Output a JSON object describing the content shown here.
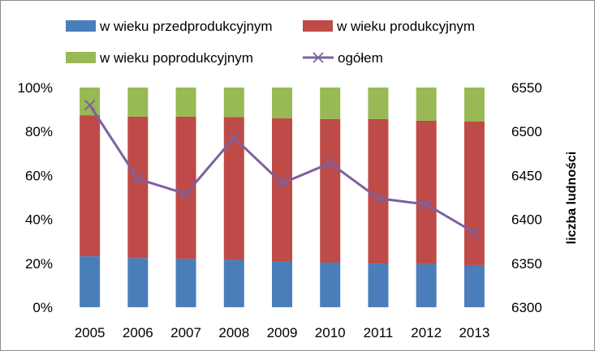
{
  "chart_data": {
    "type": "bar",
    "stacked": "percent",
    "categories": [
      "2005",
      "2006",
      "2007",
      "2008",
      "2009",
      "2010",
      "2011",
      "2012",
      "2013"
    ],
    "series": [
      {
        "name": "w wieku przedprodukcyjnym",
        "color": "#4a7ebb",
        "values": [
          23.2,
          22.4,
          22.0,
          21.6,
          20.7,
          20.3,
          19.9,
          19.6,
          19.2
        ]
      },
      {
        "name": "w wieku produkcyjnym",
        "color": "#be4b48",
        "values": [
          64.2,
          64.4,
          64.8,
          65.0,
          65.3,
          65.4,
          65.8,
          65.3,
          65.3
        ]
      },
      {
        "name": "w wieku poprodukcyjnym",
        "color": "#98b954",
        "values": [
          12.6,
          13.2,
          13.2,
          13.4,
          14.0,
          14.3,
          14.3,
          15.1,
          15.5
        ]
      }
    ],
    "line_series": {
      "name": "ogółem",
      "color": "#7d60a0",
      "axis": "right",
      "values": [
        6530,
        6446,
        6429,
        6493,
        6441,
        6464,
        6424,
        6417,
        6385
      ]
    },
    "y_left": {
      "min": 0,
      "max": 100,
      "ticks": [
        "0%",
        "20%",
        "40%",
        "60%",
        "80%",
        "100%"
      ]
    },
    "y_right": {
      "min": 6300,
      "max": 6550,
      "ticks": [
        "6300",
        "6350",
        "6400",
        "6450",
        "6500",
        "6550"
      ],
      "label": "liczba ludności"
    },
    "legend_position": "top"
  }
}
